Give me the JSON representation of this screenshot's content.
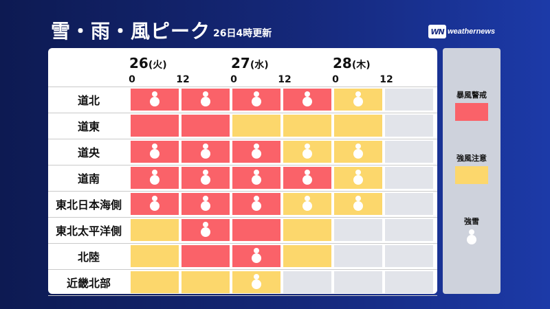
{
  "title": "雪・雨・風ピーク",
  "subtitle": "26日4時更新",
  "brand": {
    "mark": "WN",
    "name": "weathernews"
  },
  "days": [
    {
      "date": "26",
      "weekday": "(火)"
    },
    {
      "date": "27",
      "weekday": "(水)"
    },
    {
      "date": "28",
      "weekday": "(木)"
    }
  ],
  "hours": [
    "0",
    "12",
    "0",
    "12",
    "0",
    "12"
  ],
  "colors": {
    "storm_warning": "#fa6269",
    "gale_advisory": "#fcd76c",
    "none": "#e2e4ea"
  },
  "rows": [
    {
      "region": "道北",
      "cells": [
        {
          "level": "r",
          "snow": true
        },
        {
          "level": "r",
          "snow": true
        },
        {
          "level": "r",
          "snow": true
        },
        {
          "level": "r",
          "snow": true
        },
        {
          "level": "y",
          "snow": true
        },
        {
          "level": "g",
          "snow": false
        }
      ]
    },
    {
      "region": "道東",
      "cells": [
        {
          "level": "r",
          "snow": false
        },
        {
          "level": "r",
          "snow": false
        },
        {
          "level": "y",
          "snow": false
        },
        {
          "level": "y",
          "snow": false
        },
        {
          "level": "y",
          "snow": false
        },
        {
          "level": "g",
          "snow": false
        }
      ]
    },
    {
      "region": "道央",
      "cells": [
        {
          "level": "r",
          "snow": true
        },
        {
          "level": "r",
          "snow": true
        },
        {
          "level": "r",
          "snow": true
        },
        {
          "level": "y",
          "snow": true
        },
        {
          "level": "y",
          "snow": true
        },
        {
          "level": "g",
          "snow": false
        }
      ]
    },
    {
      "region": "道南",
      "cells": [
        {
          "level": "r",
          "snow": true
        },
        {
          "level": "r",
          "snow": true
        },
        {
          "level": "r",
          "snow": true
        },
        {
          "level": "r",
          "snow": true
        },
        {
          "level": "y",
          "snow": true
        },
        {
          "level": "g",
          "snow": false
        }
      ]
    },
    {
      "region": "東北日本海側",
      "cells": [
        {
          "level": "r",
          "snow": true
        },
        {
          "level": "r",
          "snow": true
        },
        {
          "level": "r",
          "snow": true
        },
        {
          "level": "y",
          "snow": true
        },
        {
          "level": "y",
          "snow": true
        },
        {
          "level": "g",
          "snow": false
        }
      ]
    },
    {
      "region": "東北太平洋側",
      "cells": [
        {
          "level": "y",
          "snow": false
        },
        {
          "level": "r",
          "snow": true
        },
        {
          "level": "r",
          "snow": false
        },
        {
          "level": "y",
          "snow": false
        },
        {
          "level": "g",
          "snow": false
        },
        {
          "level": "g",
          "snow": false
        }
      ]
    },
    {
      "region": "北陸",
      "cells": [
        {
          "level": "y",
          "snow": false
        },
        {
          "level": "r",
          "snow": false
        },
        {
          "level": "r",
          "snow": true
        },
        {
          "level": "y",
          "snow": false
        },
        {
          "level": "g",
          "snow": false
        },
        {
          "level": "g",
          "snow": false
        }
      ]
    },
    {
      "region": "近畿北部",
      "cells": [
        {
          "level": "y",
          "snow": false
        },
        {
          "level": "y",
          "snow": false
        },
        {
          "level": "y",
          "snow": true
        },
        {
          "level": "g",
          "snow": false
        },
        {
          "level": "g",
          "snow": false
        },
        {
          "level": "g",
          "snow": false
        }
      ]
    }
  ],
  "legend": {
    "storm_warning": "暴風警戒",
    "gale_advisory": "強風注意",
    "heavy_snow": "強雪"
  }
}
